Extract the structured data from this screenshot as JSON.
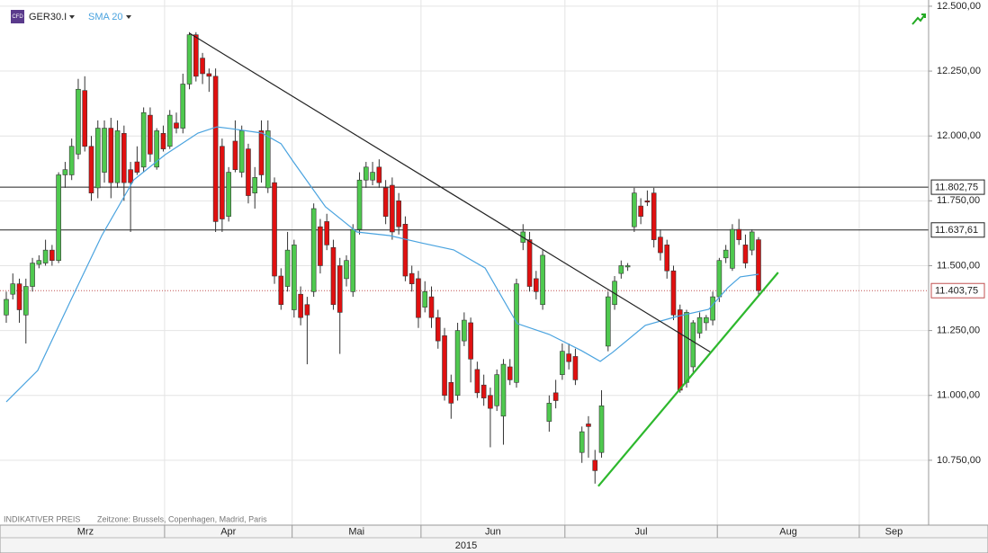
{
  "chart_data": {
    "type": "candlestick",
    "symbol": "GER30.I",
    "icon_label": "CFD",
    "indicator_label": "SMA 20",
    "footer_left": "INDIKATIVER PREIS",
    "footer_right": "Zeitzone: Brussels, Copenhagen, Madrid, Paris",
    "year_label": "2015",
    "up_color": "#4fc94f",
    "down_color": "#e01010",
    "xlim": [
      -0.96,
      141.0
    ],
    "ylim": [
      10500,
      12524
    ],
    "grid": true,
    "xticks": [
      {
        "value": 0,
        "label": "Mrz"
      },
      {
        "value": 24.2,
        "label": "Apr"
      },
      {
        "value": 43.7,
        "label": "Mai"
      },
      {
        "value": 63.4,
        "label": "Jun"
      },
      {
        "value": 85.4,
        "label": "Jul"
      },
      {
        "value": 108.7,
        "label": "Aug"
      },
      {
        "value": 130.4,
        "label": "Sep"
      }
    ],
    "yticks": [
      {
        "value": 10750,
        "label": "10.750,00"
      },
      {
        "value": 11000,
        "label": "11.000,00"
      },
      {
        "value": 11250,
        "label": "11.250,00"
      },
      {
        "value": 11500,
        "label": "11.500,00"
      },
      {
        "value": 11750,
        "label": "11.750,00"
      },
      {
        "value": 12000,
        "label": "12.000,00"
      },
      {
        "value": 12250,
        "label": "12.250,00"
      },
      {
        "value": 12500,
        "label": "12.500,00"
      }
    ],
    "candles": [
      [
        11310,
        11400,
        11280,
        11370
      ],
      [
        11390,
        11470,
        11370,
        11430
      ],
      [
        11430,
        11450,
        11280,
        11330
      ],
      [
        11310,
        11450,
        11200,
        11420
      ],
      [
        11420,
        11530,
        11400,
        11510
      ],
      [
        11505,
        11540,
        11490,
        11520
      ],
      [
        11510,
        11600,
        11500,
        11560
      ],
      [
        11560,
        11580,
        11500,
        11520
      ],
      [
        11520,
        11860,
        11510,
        11850
      ],
      [
        11850,
        11900,
        11800,
        11870
      ],
      [
        11850,
        11990,
        11830,
        11960
      ],
      [
        11930,
        12220,
        11910,
        12180
      ],
      [
        12175,
        12230,
        11940,
        11960
      ],
      [
        11960,
        12000,
        11750,
        11780
      ],
      [
        11800,
        12060,
        11760,
        12030
      ],
      [
        11860,
        12060,
        11820,
        12030
      ],
      [
        12030,
        12070,
        11760,
        11820
      ],
      [
        11820,
        12060,
        11800,
        12020
      ],
      [
        12010,
        12040,
        11750,
        11820
      ],
      [
        11870,
        11900,
        11630,
        11820
      ],
      [
        11900,
        11960,
        11850,
        11860
      ],
      [
        11880,
        12110,
        11860,
        12090
      ],
      [
        12080,
        12110,
        11900,
        11930
      ],
      [
        11880,
        12030,
        11870,
        12020
      ],
      [
        12010,
        12040,
        11940,
        11950
      ],
      [
        11960,
        12100,
        11950,
        12080
      ],
      [
        12050,
        12090,
        12010,
        12030
      ],
      [
        12030,
        12240,
        12010,
        12200
      ],
      [
        12200,
        12400,
        12180,
        12390
      ],
      [
        12390,
        12400,
        12210,
        12230
      ],
      [
        12300,
        12320,
        12200,
        12240
      ],
      [
        12240,
        12260,
        12170,
        12230
      ],
      [
        12230,
        12260,
        11630,
        11670
      ],
      [
        11960,
        11990,
        11630,
        11680
      ],
      [
        11690,
        11880,
        11670,
        11860
      ],
      [
        11980,
        12060,
        11860,
        11870
      ],
      [
        11860,
        12040,
        11840,
        12020
      ],
      [
        11950,
        11970,
        11740,
        11770
      ],
      [
        11780,
        11880,
        11720,
        11840
      ],
      [
        12020,
        12060,
        11820,
        11850
      ],
      [
        11800,
        12060,
        11780,
        12020
      ],
      [
        11820,
        11840,
        11430,
        11460
      ],
      [
        11460,
        11490,
        11330,
        11350
      ],
      [
        11420,
        11630,
        11400,
        11560
      ],
      [
        11330,
        11600,
        11300,
        11580
      ],
      [
        11390,
        11420,
        11270,
        11300
      ],
      [
        11350,
        11380,
        11120,
        11310
      ],
      [
        11400,
        11740,
        11380,
        11720
      ],
      [
        11650,
        11680,
        11470,
        11500
      ],
      [
        11670,
        11700,
        11560,
        11580
      ],
      [
        11570,
        11600,
        11330,
        11350
      ],
      [
        11500,
        11530,
        11160,
        11320
      ],
      [
        11450,
        11540,
        11420,
        11520
      ],
      [
        11400,
        11660,
        11380,
        11640
      ],
      [
        11640,
        11860,
        11620,
        11830
      ],
      [
        11830,
        11900,
        11800,
        11880
      ],
      [
        11830,
        11900,
        11810,
        11860
      ],
      [
        11880,
        11910,
        11800,
        11820
      ],
      [
        11800,
        11830,
        11660,
        11690
      ],
      [
        11810,
        11840,
        11600,
        11630
      ],
      [
        11750,
        11780,
        11620,
        11650
      ],
      [
        11660,
        11690,
        11440,
        11460
      ],
      [
        11470,
        11500,
        11400,
        11430
      ],
      [
        11450,
        11480,
        11260,
        11300
      ],
      [
        11340,
        11440,
        11320,
        11400
      ],
      [
        11380,
        11420,
        11260,
        11300
      ],
      [
        11300,
        11330,
        11180,
        11210
      ],
      [
        11230,
        11260,
        10980,
        11000
      ],
      [
        11050,
        11080,
        10910,
        10970
      ],
      [
        11000,
        11280,
        10980,
        11250
      ],
      [
        11210,
        11320,
        11190,
        11290
      ],
      [
        11280,
        11300,
        11050,
        11140
      ],
      [
        11100,
        11130,
        10990,
        11010
      ],
      [
        11040,
        11080,
        10960,
        10990
      ],
      [
        11000,
        11030,
        10800,
        10950
      ],
      [
        10960,
        11100,
        10940,
        11080
      ],
      [
        10920,
        11140,
        10810,
        11120
      ],
      [
        11110,
        11140,
        11040,
        11060
      ],
      [
        11050,
        11450,
        11030,
        11430
      ],
      [
        11590,
        11660,
        11560,
        11630
      ],
      [
        11600,
        11630,
        11400,
        11420
      ],
      [
        11450,
        11480,
        11370,
        11400
      ],
      [
        11350,
        11560,
        11330,
        11540
      ],
      [
        10900,
        11000,
        10860,
        10970
      ],
      [
        11010,
        11060,
        10950,
        10980
      ],
      [
        11080,
        11200,
        11060,
        11170
      ],
      [
        11160,
        11200,
        11100,
        11130
      ],
      [
        11150,
        11180,
        11040,
        11060
      ],
      [
        10780,
        10880,
        10740,
        10860
      ],
      [
        10890,
        10920,
        10760,
        10880
      ],
      [
        10750,
        10790,
        10660,
        10710
      ],
      [
        10780,
        11020,
        10760,
        10960
      ],
      [
        11190,
        11400,
        11170,
        11380
      ],
      [
        11350,
        11460,
        11330,
        11440
      ],
      [
        11470,
        11520,
        11450,
        11500
      ],
      [
        11495,
        11510,
        11480,
        11500
      ],
      [
        11650,
        11800,
        11630,
        11780
      ],
      [
        11730,
        11760,
        11660,
        11690
      ],
      [
        11750,
        11790,
        11730,
        11745
      ],
      [
        11780,
        11800,
        11570,
        11600
      ],
      [
        11610,
        11640,
        11520,
        11550
      ],
      [
        11580,
        11600,
        11450,
        11480
      ],
      [
        11480,
        11500,
        11290,
        11310
      ],
      [
        11330,
        11350,
        11010,
        11020
      ],
      [
        11050,
        11330,
        11030,
        11320
      ],
      [
        11110,
        11290,
        11090,
        11280
      ],
      [
        11240,
        11320,
        11220,
        11300
      ],
      [
        11280,
        11310,
        11250,
        11300
      ],
      [
        11290,
        11400,
        11270,
        11380
      ],
      [
        11380,
        11530,
        11360,
        11520
      ],
      [
        11530,
        11580,
        11510,
        11560
      ],
      [
        11490,
        11660,
        11480,
        11640
      ],
      [
        11640,
        11680,
        11580,
        11600
      ],
      [
        11580,
        11620,
        11490,
        11510
      ],
      [
        11560,
        11640,
        11540,
        11630
      ],
      [
        11600,
        11610,
        11380,
        11404
      ]
    ],
    "sma": {
      "name": "SMA 20",
      "color": "#4aa3df",
      "x": [
        0,
        4.8,
        9.8,
        14.6,
        19.5,
        24.3,
        29.3,
        32.2,
        34.1,
        39.1,
        42,
        43.9,
        48.8,
        53.6,
        58.6,
        63.4,
        68.4,
        73.2,
        78.1,
        83,
        87.9,
        90.8,
        92.7,
        97.7,
        102.5,
        107.4,
        110.3,
        112.2,
        115
      ],
      "values": [
        10975,
        11096,
        11363,
        11616,
        11831,
        11928,
        12011,
        12035,
        12029,
        12011,
        11970,
        11900,
        11727,
        11630,
        11616,
        11588,
        11561,
        11491,
        11277,
        11235,
        11173,
        11131,
        11166,
        11270,
        11304,
        11332,
        11415,
        11457,
        11467
      ]
    },
    "trendlines": [
      {
        "color": "#222222",
        "x": [
          28,
          107.7
        ],
        "values": [
          12396,
          11166
        ]
      },
      {
        "color": "#2db82d",
        "x": [
          90.5,
          118
        ],
        "values": [
          10650,
          11474
        ]
      }
    ],
    "hlines": [
      {
        "value": 11802.75,
        "label": "11.802,75",
        "color": "#222222",
        "dashed": false
      },
      {
        "value": 11637.61,
        "label": "11.637,61",
        "color": "#222222",
        "dashed": false
      },
      {
        "value": 11403.75,
        "label": "11.403,75",
        "color": "#c05050",
        "dashed": true
      }
    ]
  }
}
